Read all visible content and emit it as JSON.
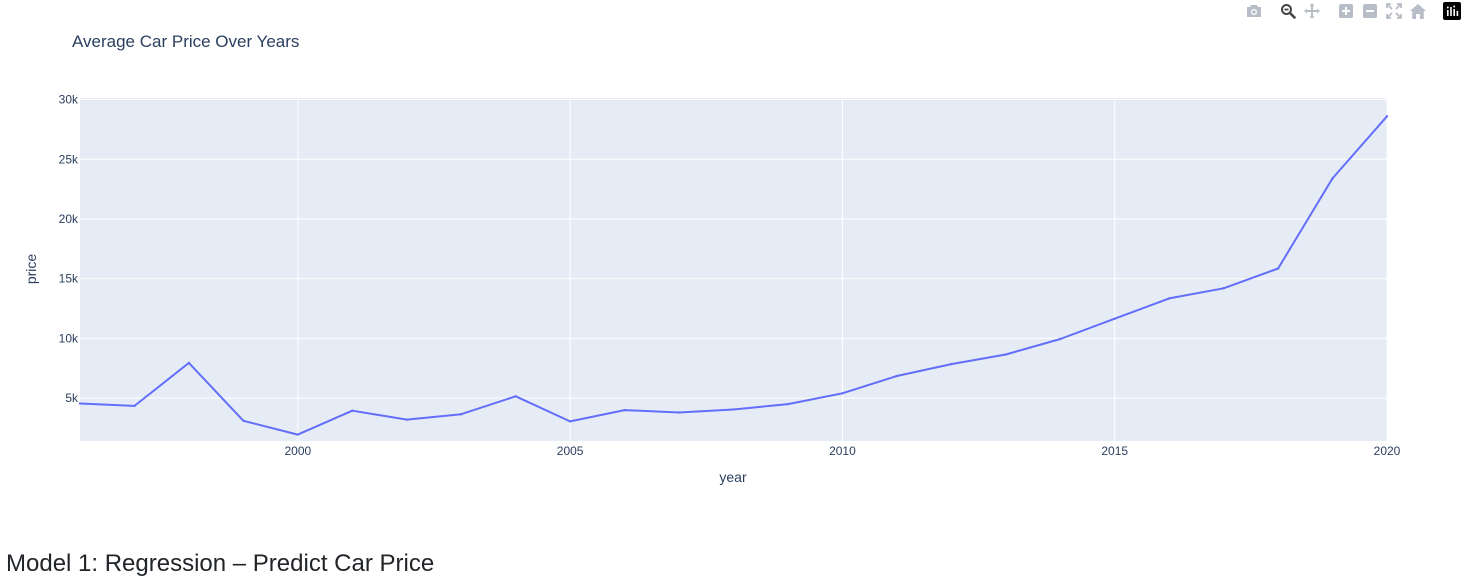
{
  "section_heading": "Model 1: Regression – Predict Car Price",
  "modebar": {
    "icons": [
      "camera-icon",
      "zoom-icon",
      "pan-icon",
      "zoom-in-icon",
      "zoom-out-icon",
      "autoscale-icon",
      "reset-axes-icon",
      "plotly-logo-icon"
    ],
    "active": "zoom-icon",
    "icon_color": "#b7bec7",
    "active_color": "#444444"
  },
  "chart_data": {
    "type": "line",
    "title": "Average Car Price Over Years",
    "xlabel": "year",
    "ylabel": "price",
    "x": [
      1996,
      1997,
      1998,
      1999,
      2000,
      2001,
      2002,
      2003,
      2004,
      2005,
      2006,
      2007,
      2008,
      2009,
      2010,
      2011,
      2012,
      2013,
      2014,
      2015,
      2016,
      2017,
      2018,
      2019,
      2020
    ],
    "series": [
      {
        "values": [
          4550,
          4350,
          7950,
          3100,
          1950,
          3950,
          3200,
          3650,
          5150,
          3050,
          4000,
          3800,
          4050,
          4500,
          5400,
          6850,
          7850,
          8650,
          9950,
          11650,
          13350,
          14200,
          15850,
          23400,
          28600
        ],
        "color": "#636efa"
      }
    ],
    "xlim": [
      1996,
      2020
    ],
    "ylim": [
      1410,
      30130
    ],
    "x_ticks": [
      2000,
      2005,
      2010,
      2015,
      2020
    ],
    "x_tick_labels": [
      "2000",
      "2005",
      "2010",
      "2015",
      "2020"
    ],
    "y_ticks": [
      5000,
      10000,
      15000,
      20000,
      25000,
      30000
    ],
    "y_tick_labels": [
      "5k",
      "10k",
      "15k",
      "20k",
      "25k",
      "30k"
    ],
    "grid": true,
    "plot_bg": "#e5ecf6",
    "grid_color": "#ffffff",
    "text_color": "#2a3f5f"
  }
}
